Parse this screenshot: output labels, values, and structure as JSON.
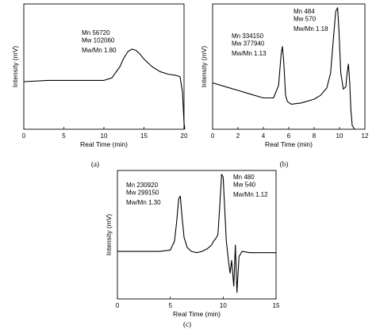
{
  "chart_data": [
    {
      "type": "line",
      "panel_label": "(a)",
      "xlabel": "Real Time (min)",
      "ylabel": "Intensity (mV)",
      "xlim": [
        0,
        20
      ],
      "xticks": [
        0,
        5,
        10,
        15,
        20
      ],
      "ylim": [
        0,
        1
      ],
      "grid": false,
      "annotations": [
        "Mn  56720",
        "Mw  102060",
        "Mw/Mn   1.80"
      ],
      "series": [
        {
          "x": [
            0,
            3,
            6,
            9,
            10,
            11,
            12,
            12.5,
            13,
            13.5,
            14,
            14.5,
            15,
            16,
            17,
            18,
            19,
            19.5,
            19.8,
            20,
            20.1
          ],
          "y": [
            0.38,
            0.39,
            0.39,
            0.39,
            0.39,
            0.41,
            0.5,
            0.57,
            0.62,
            0.64,
            0.63,
            0.6,
            0.56,
            0.5,
            0.46,
            0.44,
            0.43,
            0.42,
            0.3,
            0.05,
            0
          ]
        }
      ]
    },
    {
      "type": "line",
      "panel_label": "(b)",
      "xlabel": "Real Time (min)",
      "ylabel": "Intensity (mV)",
      "xlim": [
        0,
        12
      ],
      "xticks": [
        0,
        2,
        4,
        6,
        8,
        10,
        12
      ],
      "ylim": [
        0,
        1
      ],
      "grid": false,
      "annotations": [
        {
          "lines": [
            "Mn  334150",
            "Mw  377940",
            "Mw/Mn   1.13"
          ]
        },
        {
          "lines": [
            "Mn  484",
            "Mw  570",
            "Mw/Mn   1.18"
          ]
        }
      ],
      "series": [
        {
          "x": [
            0,
            1,
            2,
            3,
            4,
            4.8,
            5.2,
            5.4,
            5.5,
            5.6,
            5.75,
            5.9,
            6.2,
            7,
            8,
            8.5,
            9,
            9.3,
            9.5,
            9.7,
            9.85,
            9.95,
            10.1,
            10.3,
            10.5,
            10.6,
            10.7,
            10.8,
            10.9,
            11,
            11.2
          ],
          "y": [
            0.37,
            0.34,
            0.31,
            0.28,
            0.25,
            0.25,
            0.35,
            0.6,
            0.66,
            0.55,
            0.27,
            0.22,
            0.2,
            0.21,
            0.24,
            0.27,
            0.33,
            0.45,
            0.7,
            0.94,
            0.97,
            0.8,
            0.45,
            0.32,
            0.34,
            0.45,
            0.52,
            0.38,
            0.15,
            0.03,
            0
          ]
        }
      ]
    },
    {
      "type": "line",
      "panel_label": "(c)",
      "xlabel": "Real Time (min)",
      "ylabel": "Intensity (mV)",
      "xlim": [
        0,
        15
      ],
      "xticks": [
        0,
        5,
        10,
        15
      ],
      "ylim": [
        0,
        1
      ],
      "grid": false,
      "annotations": [
        {
          "lines": [
            "Mn  230920",
            "Mw  299150",
            "Mw/Mn   1.30"
          ]
        },
        {
          "lines": [
            "Mn  480",
            "Mw  540",
            "Mw/Mn   1.12"
          ]
        }
      ],
      "series": [
        {
          "x": [
            0,
            2,
            4,
            5,
            5.4,
            5.6,
            5.8,
            5.95,
            6.1,
            6.3,
            6.6,
            7,
            7.5,
            8,
            8.5,
            8.9,
            9.1,
            9.3,
            9.5,
            9.7,
            9.85,
            10,
            10.15,
            10.3,
            10.5,
            10.65,
            10.8,
            11,
            11.15,
            11.3,
            11.5,
            11.8,
            12.5,
            13.5,
            15
          ],
          "y": [
            0.37,
            0.37,
            0.37,
            0.38,
            0.45,
            0.6,
            0.78,
            0.8,
            0.65,
            0.48,
            0.4,
            0.37,
            0.36,
            0.37,
            0.39,
            0.42,
            0.45,
            0.47,
            0.5,
            0.75,
            0.97,
            0.95,
            0.7,
            0.45,
            0.3,
            0.2,
            0.3,
            0.1,
            0.42,
            0.05,
            0.33,
            0.37,
            0.36,
            0.36,
            0.36
          ]
        }
      ]
    }
  ]
}
